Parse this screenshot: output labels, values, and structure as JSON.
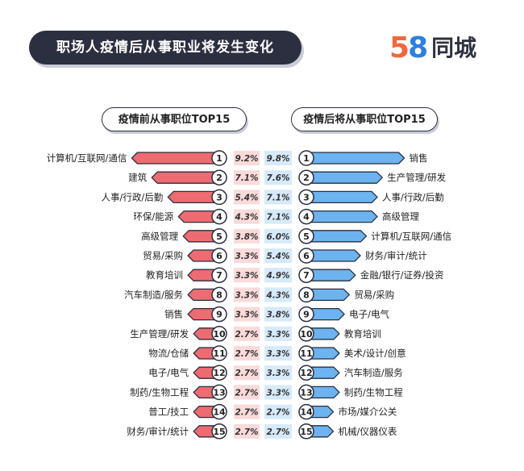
{
  "header": {
    "title": "职场人疫情后从事职业将发生变化",
    "logo_digit_5": "5",
    "logo_digit_8": "8",
    "logo_name": "同城"
  },
  "colors": {
    "left_bar": "#ee6b72",
    "right_bar": "#6cb3ef",
    "dark": "#2b2f3f",
    "left_value_bg": "#fbdada",
    "right_value_bg": "#d6eafb"
  },
  "chart_data": [
    {
      "type": "bar",
      "title": "疫情前从事职位TOP15",
      "ranks": [
        "1",
        "2",
        "3",
        "4",
        "5",
        "6",
        "7",
        "8",
        "9",
        "10",
        "11",
        "12",
        "13",
        "14",
        "15"
      ],
      "categories": [
        "计算机/互联网/通信",
        "建筑",
        "人事/行政/后勤",
        "环保/能源",
        "高级管理",
        "贸易/采购",
        "教育培训",
        "汽车制造/服务",
        "销售",
        "生产管理/研发",
        "物流/仓储",
        "电子/电气",
        "制药/生物工程",
        "普工/技工",
        "财务/审计/统计"
      ],
      "values": [
        9.2,
        7.1,
        5.4,
        4.3,
        3.8,
        3.3,
        3.3,
        3.3,
        3.3,
        2.7,
        2.7,
        2.7,
        2.7,
        2.7,
        2.7
      ],
      "value_labels": [
        "9.2%",
        "7.1%",
        "5.4%",
        "4.3%",
        "3.8%",
        "3.3%",
        "3.3%",
        "3.3%",
        "3.3%",
        "2.7%",
        "2.7%",
        "2.7%",
        "2.7%",
        "2.7%",
        "2.7%"
      ],
      "orientation": "horizontal",
      "direction": "leftward"
    },
    {
      "type": "bar",
      "title": "疫情后将从事职位TOP15",
      "ranks": [
        "1",
        "2",
        "3",
        "4",
        "5",
        "6",
        "7",
        "8",
        "9",
        "10",
        "11",
        "12",
        "13",
        "14",
        "15"
      ],
      "categories": [
        "销售",
        "生产管理/研发",
        "人事/行政/后勤",
        "高级管理",
        "计算机/互联网/通信",
        "财务/审计/统计",
        "金融/银行/证券/投资",
        "贸易/采购",
        "电子/电气",
        "教育培训",
        "美术/设计/创意",
        "汽车制造/服务",
        "制药/生物工程",
        "市场/媒介公关",
        "机械/仪器仪表"
      ],
      "values": [
        9.8,
        7.6,
        7.1,
        7.1,
        6.0,
        5.4,
        4.9,
        4.3,
        3.8,
        3.3,
        3.3,
        3.3,
        3.3,
        2.7,
        2.7
      ],
      "value_labels": [
        "9.8%",
        "7.6%",
        "7.1%",
        "7.1%",
        "6.0%",
        "5.4%",
        "4.9%",
        "4.3%",
        "3.8%",
        "3.3%",
        "3.3%",
        "3.3%",
        "3.3%",
        "2.7%",
        "2.7%"
      ],
      "orientation": "horizontal",
      "direction": "rightward"
    }
  ]
}
